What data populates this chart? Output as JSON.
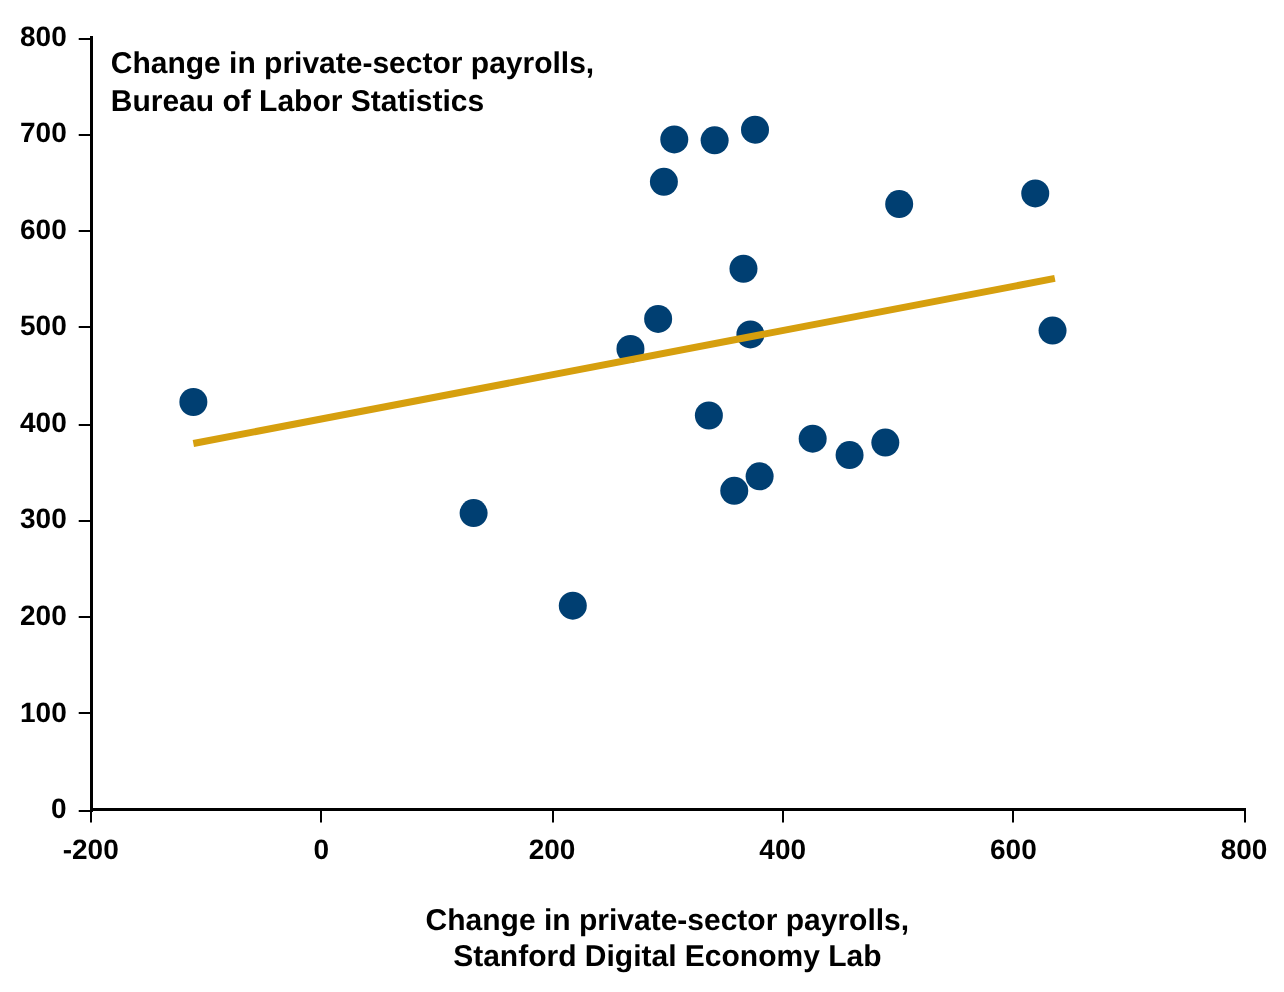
{
  "chart_data": {
    "type": "scatter",
    "ylabel": "Change in private-sector payrolls,\nBureau of Labor Statistics",
    "xlabel": "Change in private-sector payrolls,\nStanford Digital Economy Lab",
    "xlim": [
      -200,
      800
    ],
    "xticks": [
      -200,
      0,
      200,
      400,
      600,
      800
    ],
    "ylim": [
      0,
      800
    ],
    "yticks": [
      0,
      100,
      200,
      300,
      400,
      500,
      600,
      700,
      800
    ],
    "grid": false,
    "legend": false,
    "marker": "circle",
    "series": [
      {
        "color": "#003f72",
        "x": [
          -111,
          132,
          218,
          268,
          292,
          297,
          306,
          341,
          376,
          501,
          619,
          366,
          372,
          634,
          336,
          426,
          458,
          489,
          380,
          358
        ],
        "values": [
          423,
          308,
          212,
          478,
          509,
          651,
          695,
          694,
          705,
          628,
          639,
          561,
          493,
          497,
          409,
          385,
          368,
          381,
          346,
          331
        ]
      },
      {
        "type": "line",
        "color": "#d69f0e",
        "x": [
          -111,
          636
        ],
        "values": [
          380,
          551
        ],
        "marker": "none",
        "line_style": "solid"
      }
    ]
  }
}
